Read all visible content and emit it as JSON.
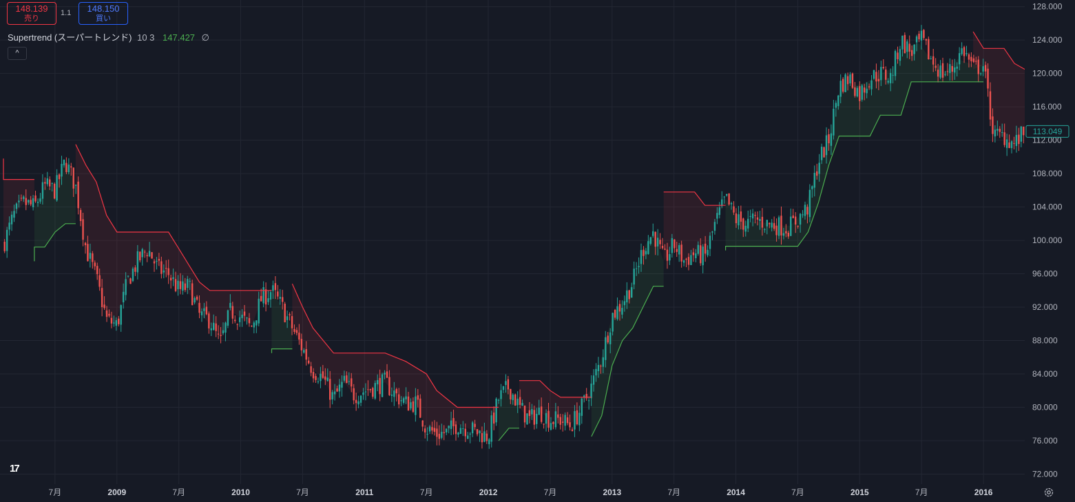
{
  "quote": {
    "sell_price": "148.139",
    "sell_label": "売り",
    "buy_price": "148.150",
    "buy_label": "買い",
    "spread": "1.1"
  },
  "indicator": {
    "name": "Supertrend (スーパートレンド)",
    "params": "10 3",
    "value": "147.427",
    "visibility_icon": "∅"
  },
  "collapse_icon": "^",
  "logo_text": "17",
  "colors": {
    "background": "#161a25",
    "up": "#26a69a",
    "down": "#ef5350",
    "supertrend_up": "#4caf50",
    "supertrend_down": "#f23645",
    "last_price": "#26a69a"
  },
  "chart_data": {
    "type": "candlestick",
    "y_range": [
      70.8,
      128.8
    ],
    "y_ticks": [
      "128.000",
      "124.000",
      "120.000",
      "116.000",
      "112.000",
      "108.000",
      "104.000",
      "100.000",
      "96.000",
      "92.000",
      "88.000",
      "84.000",
      "80.000",
      "76.000",
      "72.000"
    ],
    "x_ticks": [
      {
        "label": "7月",
        "year": false,
        "date": "2008-07"
      },
      {
        "label": "2009",
        "year": true,
        "date": "2009-01"
      },
      {
        "label": "7月",
        "year": false,
        "date": "2009-07"
      },
      {
        "label": "2010",
        "year": true,
        "date": "2010-01"
      },
      {
        "label": "7月",
        "year": false,
        "date": "2010-07"
      },
      {
        "label": "2011",
        "year": true,
        "date": "2011-01"
      },
      {
        "label": "7月",
        "year": false,
        "date": "2011-07"
      },
      {
        "label": "2012",
        "year": true,
        "date": "2012-01"
      },
      {
        "label": "7月",
        "year": false,
        "date": "2012-07"
      },
      {
        "label": "2013",
        "year": true,
        "date": "2013-01"
      },
      {
        "label": "7月",
        "year": false,
        "date": "2013-07"
      },
      {
        "label": "2014",
        "year": true,
        "date": "2014-01"
      },
      {
        "label": "7月",
        "year": false,
        "date": "2014-07"
      },
      {
        "label": "2015",
        "year": true,
        "date": "2015-01"
      },
      {
        "label": "7月",
        "year": false,
        "date": "2015-07"
      },
      {
        "label": "2016",
        "year": true,
        "date": "2016-01"
      }
    ],
    "x_range": [
      "2008-02",
      "2016-05"
    ],
    "last_price": "113.049",
    "price_path": [
      [
        "2008-02",
        99.5
      ],
      [
        "2008-03",
        103.0
      ],
      [
        "2008-04",
        104.5
      ],
      [
        "2008-05",
        104.0
      ],
      [
        "2008-06",
        106.5
      ],
      [
        "2008-07",
        106.0
      ],
      [
        "2008-08",
        109.5
      ],
      [
        "2008-09",
        106.5
      ],
      [
        "2008-10",
        99.0
      ],
      [
        "2008-11",
        95.5
      ],
      [
        "2008-12",
        90.5
      ],
      [
        "2009-01",
        89.8
      ],
      [
        "2009-02",
        95.0
      ],
      [
        "2009-03",
        97.5
      ],
      [
        "2009-04",
        99.0
      ],
      [
        "2009-05",
        96.5
      ],
      [
        "2009-06",
        96.0
      ],
      [
        "2009-07",
        94.0
      ],
      [
        "2009-08",
        94.5
      ],
      [
        "2009-09",
        91.0
      ],
      [
        "2009-10",
        90.5
      ],
      [
        "2009-11",
        87.5
      ],
      [
        "2009-12",
        91.5
      ],
      [
        "2010-01",
        90.8
      ],
      [
        "2010-02",
        89.5
      ],
      [
        "2010-03",
        93.0
      ],
      [
        "2010-04",
        94.0
      ],
      [
        "2010-05",
        92.0
      ],
      [
        "2010-06",
        89.5
      ],
      [
        "2010-07",
        87.0
      ],
      [
        "2010-08",
        84.5
      ],
      [
        "2010-09",
        83.5
      ],
      [
        "2010-10",
        81.0
      ],
      [
        "2010-11",
        83.0
      ],
      [
        "2010-12",
        81.5
      ],
      [
        "2011-01",
        82.0
      ],
      [
        "2011-02",
        82.5
      ],
      [
        "2011-03",
        83.0
      ],
      [
        "2011-04",
        81.5
      ],
      [
        "2011-05",
        80.5
      ],
      [
        "2011-06",
        80.5
      ],
      [
        "2011-07",
        77.5
      ],
      [
        "2011-08",
        76.8
      ],
      [
        "2011-09",
        77.0
      ],
      [
        "2011-10",
        78.0
      ],
      [
        "2011-11",
        77.5
      ],
      [
        "2011-12",
        77.0
      ],
      [
        "2012-01",
        76.5
      ],
      [
        "2012-02",
        81.0
      ],
      [
        "2012-03",
        82.5
      ],
      [
        "2012-04",
        80.0
      ],
      [
        "2012-05",
        78.5
      ],
      [
        "2012-06",
        79.5
      ],
      [
        "2012-07",
        78.5
      ],
      [
        "2012-08",
        78.5
      ],
      [
        "2012-09",
        77.8
      ],
      [
        "2012-10",
        79.8
      ],
      [
        "2012-11",
        82.5
      ],
      [
        "2012-12",
        86.0
      ],
      [
        "2013-01",
        91.0
      ],
      [
        "2013-02",
        92.5
      ],
      [
        "2013-03",
        95.0
      ],
      [
        "2013-04",
        99.0
      ],
      [
        "2013-05",
        101.0
      ],
      [
        "2013-06",
        97.5
      ],
      [
        "2013-07",
        99.5
      ],
      [
        "2013-08",
        97.5
      ],
      [
        "2013-09",
        98.5
      ],
      [
        "2013-10",
        98.0
      ],
      [
        "2013-11",
        102.0
      ],
      [
        "2013-12",
        105.0
      ],
      [
        "2014-01",
        102.5
      ],
      [
        "2014-02",
        102.0
      ],
      [
        "2014-03",
        102.5
      ],
      [
        "2014-04",
        102.0
      ],
      [
        "2014-05",
        101.8
      ],
      [
        "2014-06",
        101.5
      ],
      [
        "2014-07",
        102.5
      ],
      [
        "2014-08",
        104.0
      ],
      [
        "2014-09",
        109.5
      ],
      [
        "2014-10",
        112.0
      ],
      [
        "2014-11",
        118.5
      ],
      [
        "2014-12",
        119.5
      ],
      [
        "2015-01",
        117.5
      ],
      [
        "2015-02",
        119.5
      ],
      [
        "2015-03",
        120.0
      ],
      [
        "2015-04",
        119.5
      ],
      [
        "2015-05",
        124.0
      ],
      [
        "2015-06",
        122.5
      ],
      [
        "2015-07",
        124.0
      ],
      [
        "2015-08",
        121.5
      ],
      [
        "2015-09",
        120.0
      ],
      [
        "2015-10",
        120.5
      ],
      [
        "2015-11",
        123.0
      ],
      [
        "2015-12",
        120.5
      ],
      [
        "2016-01",
        121.0
      ],
      [
        "2016-02",
        112.5
      ],
      [
        "2016-03",
        112.5
      ],
      [
        "2016-04",
        111.5
      ],
      [
        "2016-05",
        113.0
      ]
    ],
    "supertrend_segments": [
      {
        "trend": "down",
        "points": [
          [
            "2008-02",
            109.8
          ],
          [
            "2008-02",
            107.3
          ],
          [
            "2008-05",
            107.3
          ]
        ]
      },
      {
        "trend": "up",
        "points": [
          [
            "2008-05",
            97.5
          ],
          [
            "2008-05",
            99.2
          ],
          [
            "2008-06",
            99.2
          ],
          [
            "2008-07",
            101.0
          ],
          [
            "2008-08",
            102.0
          ],
          [
            "2008-09",
            102.0
          ]
        ]
      },
      {
        "trend": "down",
        "points": [
          [
            "2008-09",
            111.5
          ],
          [
            "2008-10",
            109.0
          ],
          [
            "2008-11",
            107.0
          ],
          [
            "2008-12",
            103.0
          ],
          [
            "2009-01",
            101.0
          ],
          [
            "2009-04",
            101.0
          ],
          [
            "2009-06",
            101.0
          ],
          [
            "2009-07",
            99.0
          ],
          [
            "2009-08",
            97.0
          ],
          [
            "2009-09",
            95.0
          ],
          [
            "2009-10",
            94.0
          ],
          [
            "2010-01",
            94.0
          ],
          [
            "2010-04",
            94.0
          ]
        ]
      },
      {
        "trend": "up",
        "points": [
          [
            "2010-04",
            86.5
          ],
          [
            "2010-04",
            87.0
          ],
          [
            "2010-05",
            87.0
          ],
          [
            "2010-06",
            87.0
          ]
        ]
      },
      {
        "trend": "down",
        "points": [
          [
            "2010-06",
            94.8
          ],
          [
            "2010-07",
            92.0
          ],
          [
            "2010-08",
            89.5
          ],
          [
            "2010-09",
            88.0
          ],
          [
            "2010-10",
            86.5
          ],
          [
            "2011-01",
            86.5
          ],
          [
            "2011-03",
            86.5
          ],
          [
            "2011-05",
            85.5
          ],
          [
            "2011-07",
            84.0
          ],
          [
            "2011-08",
            82.0
          ],
          [
            "2011-09",
            81.0
          ],
          [
            "2011-10",
            80.0
          ],
          [
            "2012-01",
            80.0
          ],
          [
            "2012-02",
            80.0
          ]
        ]
      },
      {
        "trend": "up",
        "points": [
          [
            "2012-02",
            76.0
          ],
          [
            "2012-03",
            77.5
          ],
          [
            "2012-04",
            77.5
          ]
        ]
      },
      {
        "trend": "down",
        "points": [
          [
            "2012-04",
            83.2
          ],
          [
            "2012-06",
            83.2
          ],
          [
            "2012-07",
            82.0
          ],
          [
            "2012-08",
            81.2
          ],
          [
            "2012-11",
            81.2
          ]
        ]
      },
      {
        "trend": "up",
        "points": [
          [
            "2012-11",
            76.5
          ],
          [
            "2012-12",
            79.0
          ],
          [
            "2013-01",
            85.0
          ],
          [
            "2013-02",
            88.0
          ],
          [
            "2013-03",
            89.5
          ],
          [
            "2013-04",
            92.0
          ],
          [
            "2013-05",
            94.5
          ],
          [
            "2013-06",
            94.5
          ]
        ]
      },
      {
        "trend": "down",
        "points": [
          [
            "2013-06",
            105.8
          ],
          [
            "2013-09",
            105.8
          ],
          [
            "2013-10",
            104.2
          ],
          [
            "2013-12",
            104.2
          ]
        ]
      },
      {
        "trend": "up",
        "points": [
          [
            "2013-12",
            98.8
          ],
          [
            "2013-12",
            99.3
          ],
          [
            "2014-03",
            99.3
          ],
          [
            "2014-06",
            99.3
          ],
          [
            "2014-07",
            99.3
          ],
          [
            "2014-08",
            101.0
          ],
          [
            "2014-09",
            104.5
          ],
          [
            "2014-10",
            109.0
          ],
          [
            "2014-11",
            112.5
          ],
          [
            "2015-02",
            112.5
          ],
          [
            "2015-03",
            115.0
          ],
          [
            "2015-05",
            115.0
          ],
          [
            "2015-06",
            119.0
          ],
          [
            "2015-12",
            119.0
          ],
          [
            "2016-01",
            119.0
          ]
        ]
      },
      {
        "trend": "down",
        "points": [
          [
            "2015-12",
            125.0
          ],
          [
            "2016-01",
            123.0
          ],
          [
            "2016-03",
            123.0
          ],
          [
            "2016-04",
            121.2
          ],
          [
            "2016-05",
            120.5
          ]
        ]
      }
    ],
    "title": "",
    "xlabel": "",
    "ylabel": "",
    "grid": true,
    "legend": "none"
  }
}
